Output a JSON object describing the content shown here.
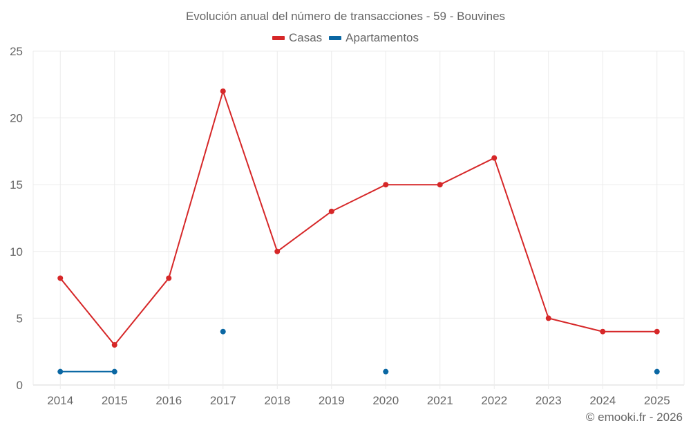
{
  "chart_data": {
    "type": "line",
    "title": "Evolución anual del número de transacciones - 59 - Bouvines",
    "categories": [
      "2014",
      "2015",
      "2016",
      "2017",
      "2018",
      "2019",
      "2020",
      "2021",
      "2022",
      "2023",
      "2024",
      "2025"
    ],
    "series": [
      {
        "name": "Casas",
        "color": "#d62728",
        "values": [
          8,
          3,
          8,
          22,
          10,
          13,
          15,
          15,
          17,
          5,
          4,
          4
        ]
      },
      {
        "name": "Apartamentos",
        "color": "#0a67a3",
        "values": [
          1,
          1,
          null,
          4,
          null,
          null,
          1,
          null,
          null,
          null,
          null,
          1
        ]
      }
    ],
    "xlabel": "",
    "ylabel": "",
    "ylim": [
      0,
      25
    ],
    "yticks": [
      0,
      5,
      10,
      15,
      20,
      25
    ],
    "grid": true,
    "legend_position": "top"
  },
  "credit": "© emooki.fr - 2026"
}
